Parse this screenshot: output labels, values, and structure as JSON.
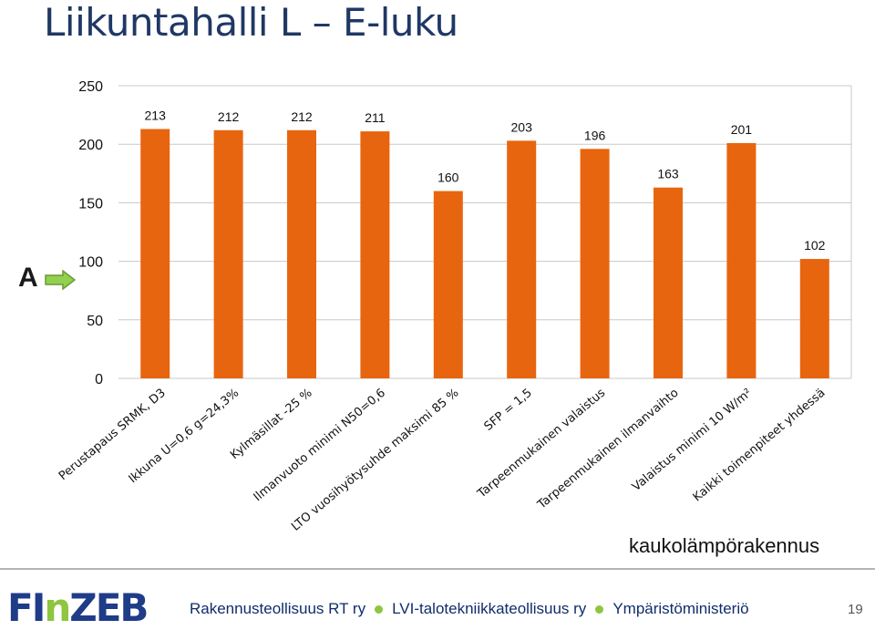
{
  "slide": {
    "title": "Liikuntahalli L – E-luku",
    "marker_label": "A",
    "building_type": "kaukolämpörakennus",
    "page_number": "19",
    "logo_text": "FInZEB",
    "footer_orgs": [
      "Rakennusteollisuus RT ry",
      "LVI-talotekniikkateollisuus ry",
      "Ympäristöministeriö"
    ],
    "colors": {
      "bar": "#e8650f",
      "title": "#1f3864",
      "arrow": "#92d050",
      "footer_dot": "#8dc63f",
      "logo_blue": "#1f3c88",
      "logo_green": "#8dc63f"
    }
  },
  "chart_data": {
    "type": "bar",
    "title": "",
    "xlabel": "",
    "ylabel": "",
    "categories": [
      "Perustapaus SRMK, D3",
      "Ikkuna U=0,6 g=24,3%",
      "Kylmäsillat -25 %",
      "Ilmanvuoto minimi N50=0,6",
      "LTO vuosihyötysuhde maksimi 85 %",
      "SFP = 1,5",
      "Tarpeenmukainen valaistus",
      "Tarpeenmukainen ilmanvaihto",
      "Valaistus minimi 10 W/m²",
      "Kaikki toimenpiteet yhdessä"
    ],
    "values": [
      213,
      212,
      212,
      211,
      160,
      203,
      196,
      163,
      201,
      102
    ],
    "ylim": [
      0,
      250
    ],
    "yticks": [
      0,
      50,
      100,
      150,
      200,
      250
    ],
    "grid": true,
    "marker_value": 100
  }
}
